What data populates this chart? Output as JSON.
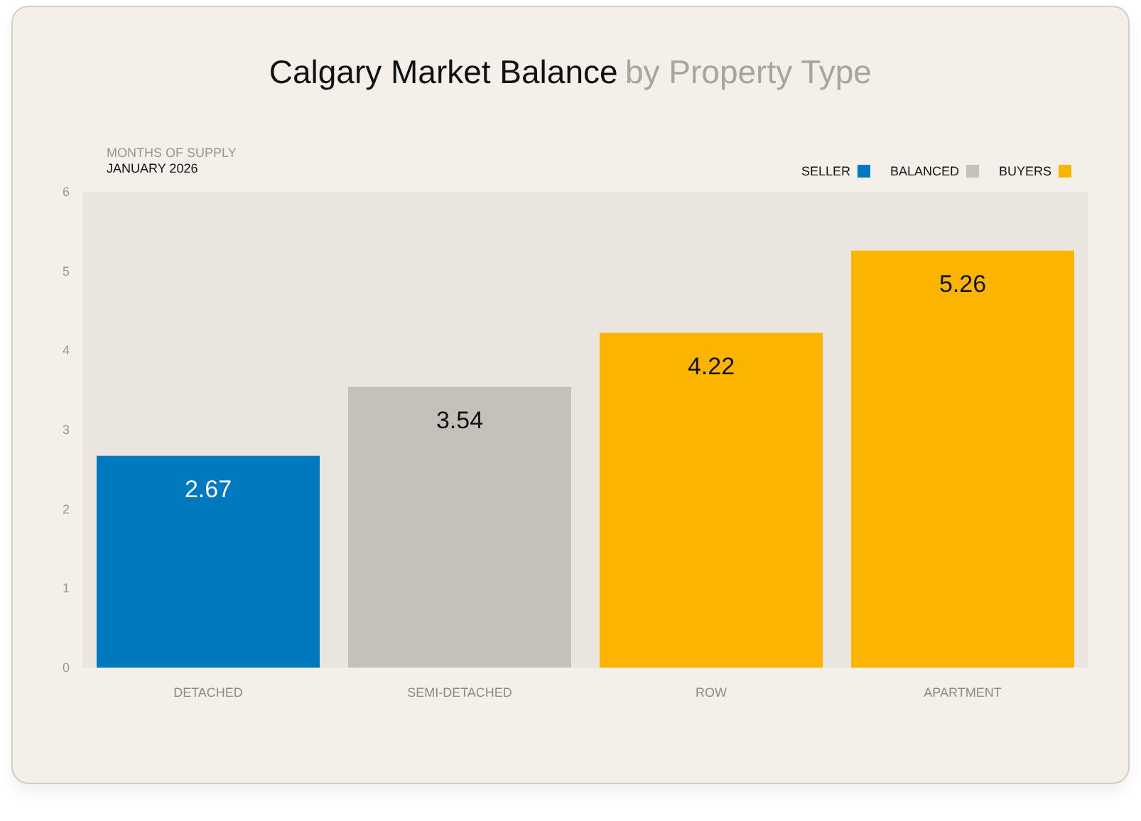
{
  "chart_data": {
    "type": "bar",
    "title": "Calgary Market Balance",
    "subtitle": "by Property Type",
    "ylabel": "MONTHS OF SUPPLY",
    "annotations": [
      "JANUARY 2026"
    ],
    "categories": [
      "DETACHED",
      "SEMI-DETACHED",
      "ROW",
      "APARTMENT"
    ],
    "series": [
      {
        "name": "SELLER",
        "color": "#0079be",
        "values": [
          2.67,
          null,
          null,
          null
        ]
      },
      {
        "name": "BALANCED",
        "color": "#c4c0ba",
        "values": [
          null,
          3.54,
          null,
          null
        ]
      },
      {
        "name": "BUYERS",
        "color": "#fbb500",
        "values": [
          null,
          null,
          4.22,
          5.26
        ]
      }
    ],
    "ylim": [
      0,
      6
    ],
    "yticks": [
      0,
      1,
      2,
      3,
      4,
      5,
      6
    ],
    "data_labels": true,
    "legend": "top right"
  }
}
